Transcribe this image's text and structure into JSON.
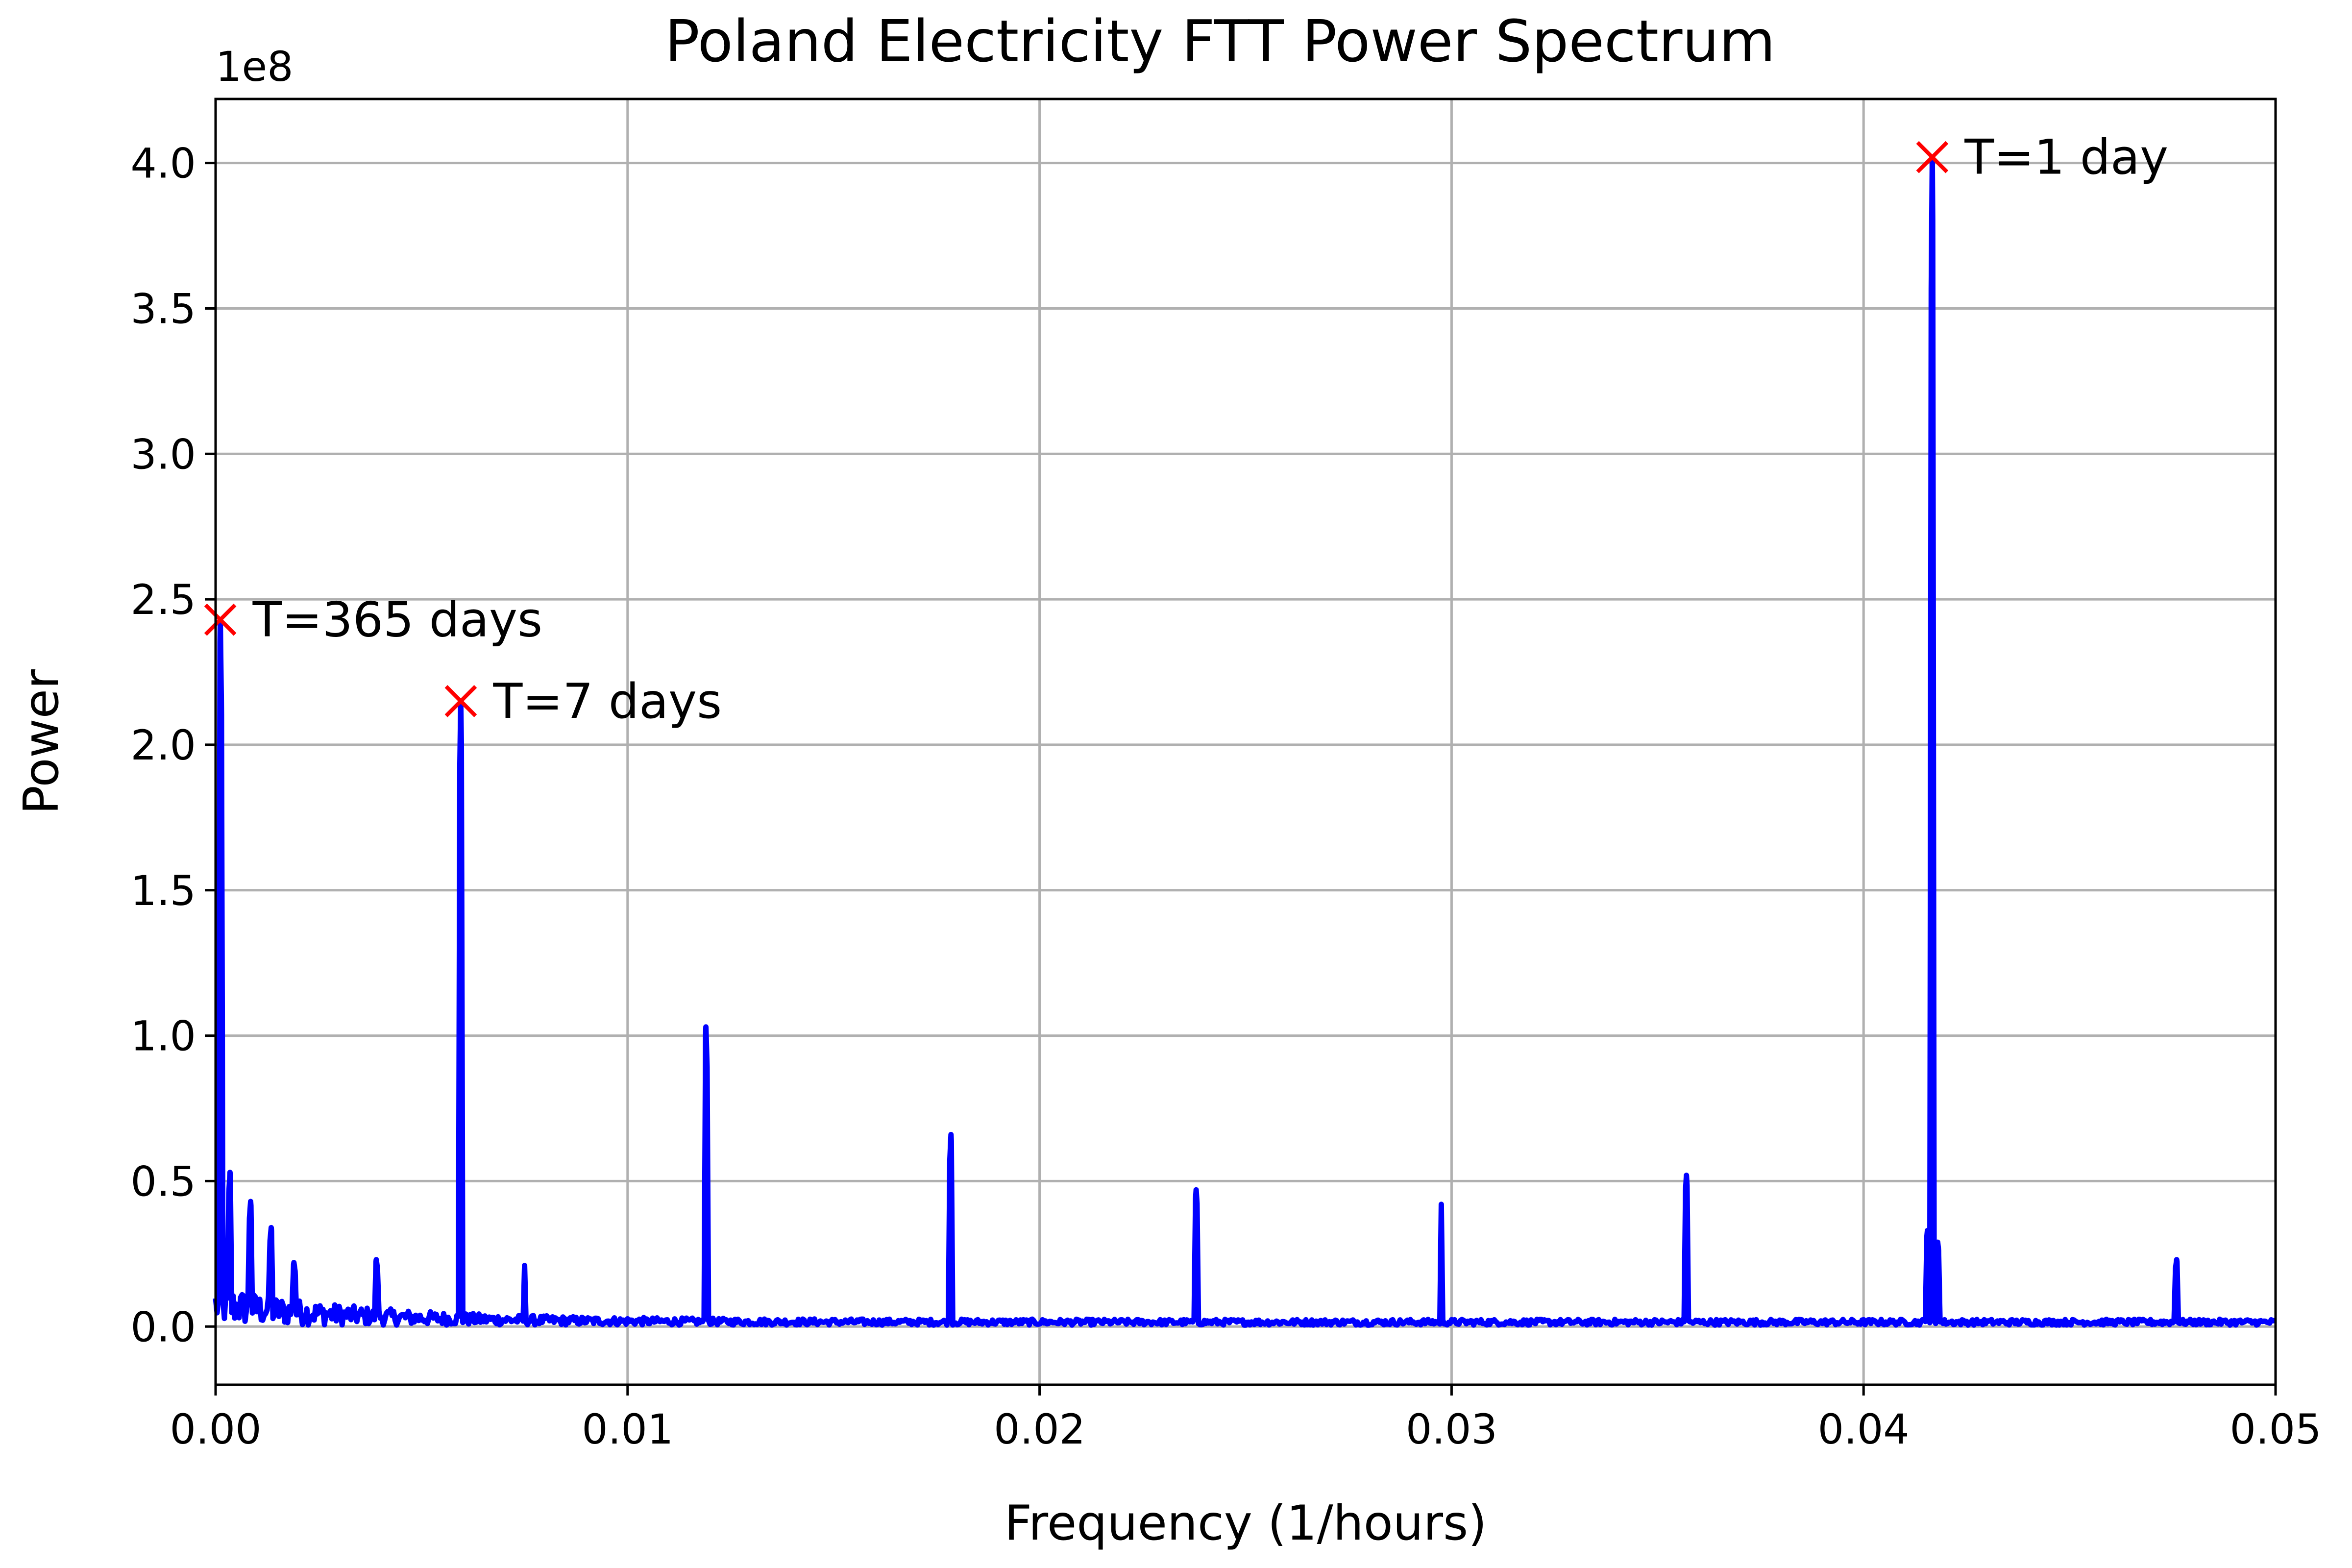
{
  "chart_data": {
    "type": "line",
    "title": "Poland Electricity FTT Power Spectrum",
    "xlabel": "Frequency (1/hours)",
    "ylabel": "Power",
    "y_offset_label": "1e8",
    "xlim": [
      0.0,
      0.05
    ],
    "ylim": [
      -0.2,
      4.22
    ],
    "y_scale_factor": 100000000,
    "grid": true,
    "x_ticks": [
      {
        "value": 0.0,
        "label": "0.00"
      },
      {
        "value": 0.01,
        "label": "0.01"
      },
      {
        "value": 0.02,
        "label": "0.02"
      },
      {
        "value": 0.03,
        "label": "0.03"
      },
      {
        "value": 0.04,
        "label": "0.04"
      },
      {
        "value": 0.05,
        "label": "0.05"
      }
    ],
    "y_ticks": [
      {
        "value": 0.0,
        "label": "0.0"
      },
      {
        "value": 0.5,
        "label": "0.5"
      },
      {
        "value": 1.0,
        "label": "1.0"
      },
      {
        "value": 1.5,
        "label": "1.5"
      },
      {
        "value": 2.0,
        "label": "2.0"
      },
      {
        "value": 2.5,
        "label": "2.5"
      },
      {
        "value": 3.0,
        "label": "3.0"
      },
      {
        "value": 3.5,
        "label": "3.5"
      },
      {
        "value": 4.0,
        "label": "4.0"
      }
    ],
    "series": [
      {
        "color": "#0000ff",
        "peaks": [
          {
            "x": 0.000114,
            "y": 2.43
          },
          {
            "x": 0.00035,
            "y": 0.53
          },
          {
            "x": 0.00085,
            "y": 0.43
          },
          {
            "x": 0.00135,
            "y": 0.34
          },
          {
            "x": 0.0019,
            "y": 0.22
          },
          {
            "x": 0.0039,
            "y": 0.23
          },
          {
            "x": 0.00595,
            "y": 2.15
          },
          {
            "x": 0.0075,
            "y": 0.21
          },
          {
            "x": 0.0119,
            "y": 1.03
          },
          {
            "x": 0.01785,
            "y": 0.66
          },
          {
            "x": 0.0238,
            "y": 0.47
          },
          {
            "x": 0.02975,
            "y": 0.42
          },
          {
            "x": 0.0357,
            "y": 0.52
          },
          {
            "x": 0.04155,
            "y": 0.33
          },
          {
            "x": 0.041667,
            "y": 4.02
          },
          {
            "x": 0.0418,
            "y": 0.29
          },
          {
            "x": 0.0476,
            "y": 0.23
          }
        ]
      }
    ],
    "markers": [
      {
        "x": 0.000114,
        "y": 2.43,
        "label": "T=365 days",
        "color": "#ff0000"
      },
      {
        "x": 0.005952,
        "y": 2.15,
        "label": "T=7 days",
        "color": "#ff0000"
      },
      {
        "x": 0.041667,
        "y": 4.02,
        "label": "T=1 day",
        "color": "#ff0000"
      }
    ]
  }
}
